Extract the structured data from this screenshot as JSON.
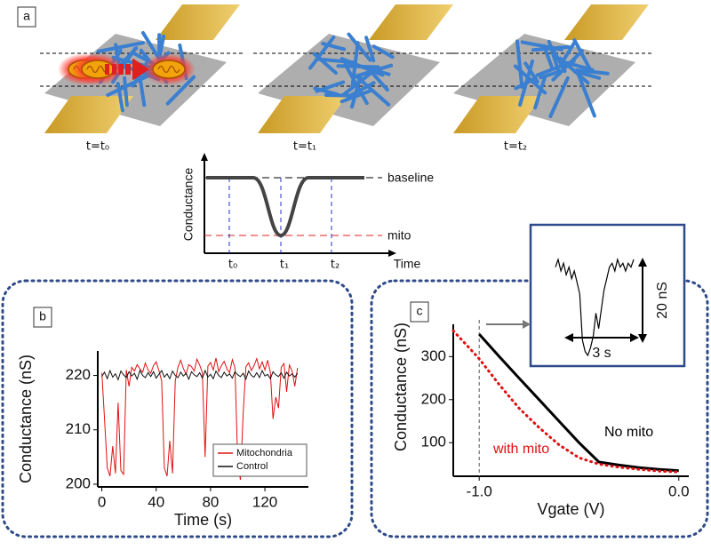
{
  "figure": {
    "panel_labels": [
      "a",
      "b",
      "c"
    ],
    "schematic": {
      "time_labels": [
        "t=t₀",
        "t=t₁",
        "t=t₂"
      ],
      "ylabel": "Conductance",
      "xlabel": "Time",
      "levels": [
        "baseline",
        "mito"
      ],
      "ticks": [
        "t₀",
        "t₁",
        "t₂"
      ]
    }
  },
  "chart_data": [
    {
      "type": "line",
      "xlabel": "Time (s)",
      "ylabel": "Conductance (nS)",
      "xlim": [
        -3,
        152
      ],
      "ylim": [
        199.5,
        224.5
      ],
      "xticks": [
        0,
        40,
        80,
        120
      ],
      "yticks": [
        200,
        210,
        220
      ],
      "legend": "lower right",
      "x": [
        0,
        2,
        4,
        6,
        8,
        10,
        12,
        14,
        16,
        18,
        20,
        22,
        24,
        26,
        28,
        30,
        32,
        34,
        36,
        38,
        40,
        42,
        44,
        46,
        48,
        50,
        52,
        54,
        56,
        58,
        60,
        62,
        64,
        66,
        68,
        70,
        72,
        74,
        76,
        78,
        80,
        82,
        84,
        86,
        88,
        90,
        92,
        94,
        96,
        98,
        100,
        102,
        104,
        106,
        108,
        110,
        112,
        114,
        116,
        118,
        120,
        122,
        124,
        126,
        128,
        130,
        132,
        134,
        136,
        138,
        140,
        142,
        144
      ],
      "series": [
        {
          "name": "Mitochondria",
          "color": "#e01010",
          "values": [
            220.5,
            212,
            203,
            201.5,
            207,
            202,
            215,
            202.5,
            201.8,
            221,
            218,
            221.5,
            220.8,
            222,
            221.2,
            220.6,
            222.3,
            221,
            220.4,
            221.8,
            222.5,
            220.9,
            219,
            203,
            201.5,
            208,
            202,
            219,
            221.5,
            222.8,
            221.3,
            220.2,
            222,
            221.6,
            220.8,
            223,
            221.9,
            220.5,
            205,
            221.7,
            222.4,
            221,
            223.2,
            220.7,
            221.8,
            222.6,
            221.2,
            220.5,
            222.9,
            221.4,
            204,
            200.8,
            213,
            221.6,
            222.3,
            220.9,
            221.8,
            223.1,
            221.2,
            222.5,
            221,
            222.8,
            220.6,
            212,
            216,
            214,
            221.5,
            222.2,
            217,
            221.9,
            220.8,
            218,
            221.4
          ]
        },
        {
          "name": "Control",
          "color": "#111111",
          "values": [
            219.8,
            220.6,
            219.4,
            220.9,
            219.7,
            220.3,
            219.2,
            220.8,
            220.1,
            219.6,
            220.7,
            219.9,
            220.4,
            219.3,
            220.9,
            220.0,
            219.6,
            220.5,
            219.8,
            220.7,
            219.5,
            220.2,
            220.9,
            219.7,
            220.3,
            219.4,
            220.8,
            220.0,
            219.6,
            220.6,
            219.9,
            220.4,
            219.3,
            220.7,
            220.1,
            219.8,
            220.5,
            219.5,
            220.9,
            219.7,
            220.2,
            219.4,
            220.8,
            220.0,
            219.6,
            220.6,
            219.9,
            220.3,
            219.5,
            220.7,
            220.1,
            219.8,
            220.4,
            219.3,
            220.8,
            220.0,
            219.7,
            220.5,
            219.6,
            220.9,
            219.9,
            220.2,
            219.4,
            220.7,
            220.1,
            219.8,
            220.5,
            219.5,
            220.6,
            219.9,
            220.3,
            219.7,
            220.4
          ]
        }
      ]
    },
    {
      "type": "line",
      "xlabel": "Vgate (V)",
      "ylabel": "Conductance (nS)",
      "xlim": [
        -1.13,
        0.05
      ],
      "ylim": [
        22,
        375
      ],
      "xticks": [
        {
          "value": -1,
          "label": "-1.0"
        },
        {
          "value": 0,
          "label": "0.0"
        }
      ],
      "yticks": [
        100,
        200,
        300
      ],
      "series": [
        {
          "name": "No mito",
          "color": "#000000",
          "line_style": "solid",
          "x": [
            -1.0,
            -0.9,
            -0.8,
            -0.7,
            -0.6,
            -0.5,
            -0.4,
            -0.3,
            -0.2,
            -0.1,
            0.0
          ],
          "values": [
            352,
            300,
            250,
            200,
            150,
            100,
            55,
            48,
            42,
            38,
            35
          ]
        },
        {
          "name": "with mito",
          "color": "#e01010",
          "line_style": "dotted",
          "x": [
            -1.13,
            -1.05,
            -1.0,
            -0.9,
            -0.8,
            -0.7,
            -0.6,
            -0.5,
            -0.4,
            -0.3,
            -0.2,
            -0.1,
            0.0
          ],
          "values": [
            360,
            320,
            295,
            235,
            180,
            135,
            95,
            65,
            50,
            43,
            38,
            34,
            32
          ]
        }
      ]
    },
    {
      "type": "trace",
      "scale_labels": [
        "20 nS",
        "3 s"
      ],
      "values": [
        222,
        224,
        221,
        223,
        220,
        222,
        219,
        221,
        218,
        215,
        203,
        200,
        199,
        201,
        204,
        210,
        206,
        211,
        216,
        219,
        222,
        223,
        221,
        224,
        222,
        223,
        221,
        223,
        222,
        224
      ]
    }
  ]
}
